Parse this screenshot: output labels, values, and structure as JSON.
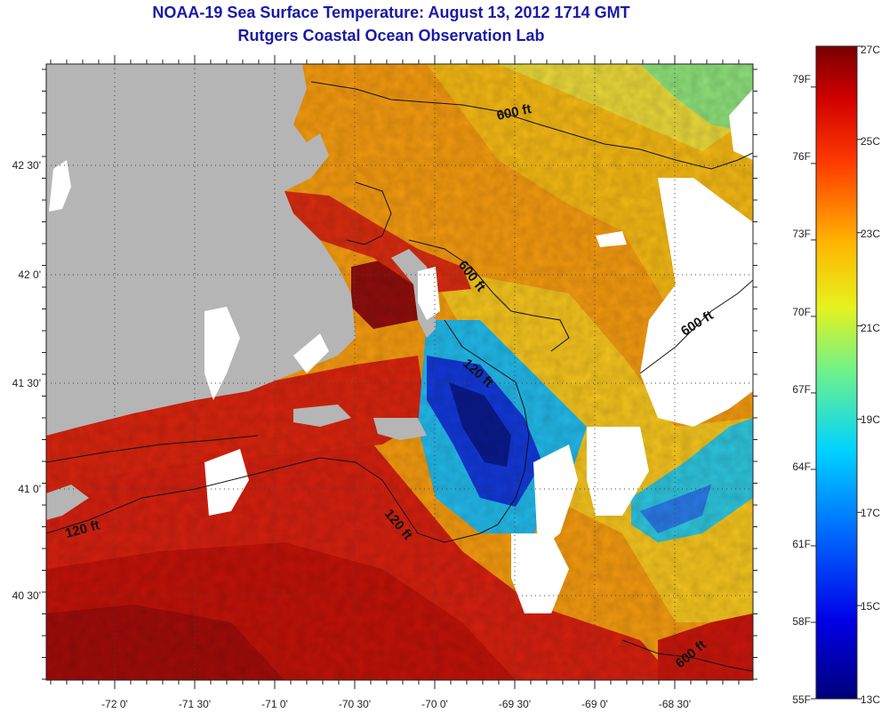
{
  "title": "NOAA-19 Sea Surface Temperature:  August 13, 2012 1714 GMT",
  "subtitle": "Rutgers Coastal Ocean Observation Lab",
  "longitude_labels": [
    "-72 0'",
    "-71 30'",
    "-71 0'",
    "-70 30'",
    "-70 0'",
    "-69 30'",
    "-69 0'",
    "-68 30'"
  ],
  "latitude_labels": [
    "42 30'",
    "42 0'",
    "41 30'",
    "41 0'",
    "40 30'"
  ],
  "colorbar": {
    "fahrenheit_labels": [
      "79F",
      "76F",
      "73F",
      "70F",
      "67F",
      "64F",
      "61F",
      "58F",
      "55F"
    ],
    "celsius_labels": [
      "27C",
      "25C",
      "23C",
      "21C",
      "19C",
      "17C",
      "15C",
      "13C"
    ],
    "range_c": [
      13,
      27
    ],
    "range_f": [
      55,
      80.6
    ]
  },
  "depth_contours": [
    "600 ft",
    "600 ft",
    "600 ft",
    "600 ft",
    "120 ft",
    "120 ft",
    "120 ft"
  ],
  "colors": {
    "title": "#1a1aa6",
    "land": "#b5b5b5",
    "cloud": "#ffffff",
    "warm": "#c8160c",
    "hot": "#8a0a0a",
    "orange": "#f39a10",
    "yellow": "#f6d224",
    "cyan": "#22c8e0",
    "blue": "#1238d8",
    "deep_blue": "#0a1a8c"
  }
}
